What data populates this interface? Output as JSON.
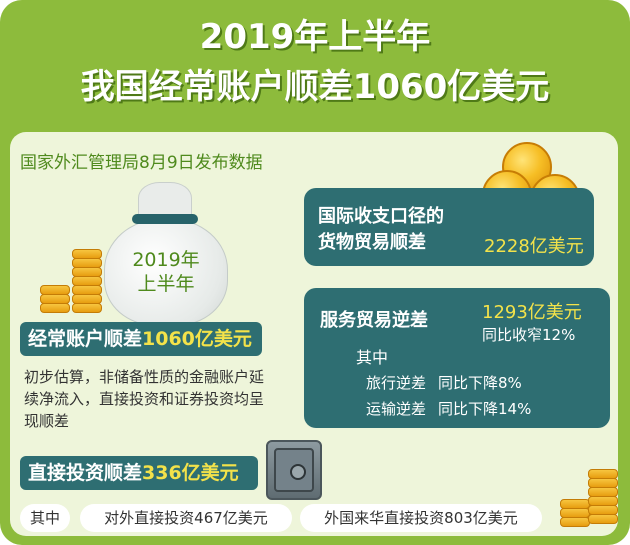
{
  "title": {
    "line1": "2019年上半年",
    "line2": "我国经常账户顺差1060亿美元"
  },
  "source": "国家外汇管理局8月9日发布数据",
  "bag": {
    "line1": "2019年",
    "line2": "上半年"
  },
  "current_account": {
    "label": "经常账户顺差",
    "value": "1060亿美元",
    "description": "初步估算，非储备性质的金融账户延续净流入，直接投资和证券投资均呈现顺差"
  },
  "direct_investment": {
    "label": "直接投资顺差",
    "value": "336亿美元",
    "qizhong": "其中",
    "outbound": "对外直接投资467亿美元",
    "inbound": "外国来华直接投资803亿美元"
  },
  "goods_trade": {
    "line1": "国际收支口径的",
    "line2": "货物贸易顺差",
    "value": "2228亿美元"
  },
  "services_trade": {
    "label": "服务贸易逆差",
    "value": "1293亿美元",
    "change": "同比收窄12%",
    "qizhong": "其中",
    "rows": [
      {
        "label": "旅行逆差",
        "change": "同比下降8%"
      },
      {
        "label": "运输逆差",
        "change": "同比下降14%"
      }
    ]
  },
  "colors": {
    "frame_green": "#8dbb3c",
    "panel": "#eef5da",
    "teal": "#2e6e72",
    "highlight_yellow": "#f3e24a",
    "source_green": "#4f8a1d"
  },
  "icons": [
    "money-bag-icon",
    "coin-stack-icon",
    "gold-coins-icon",
    "safe-icon"
  ]
}
